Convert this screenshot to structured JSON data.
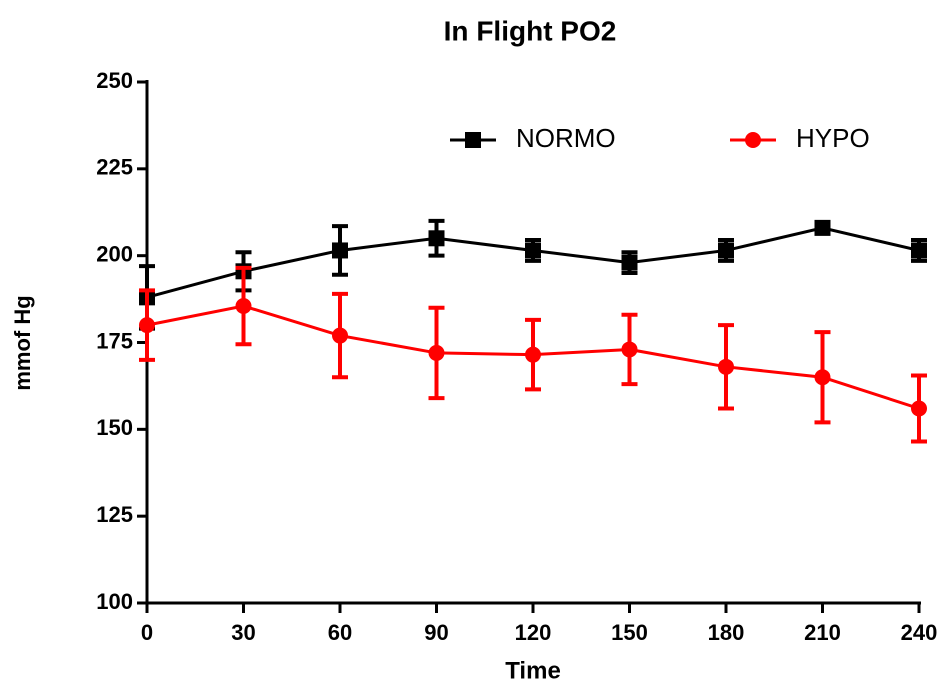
{
  "chart_data": {
    "type": "line",
    "title": "In Flight PO2",
    "xlabel": "Time",
    "ylabel": "mmof Hg",
    "x": [
      0,
      30,
      60,
      90,
      120,
      150,
      180,
      210,
      240
    ],
    "xlim": [
      0,
      240
    ],
    "xticks": [
      0,
      30,
      60,
      90,
      120,
      150,
      180,
      210,
      240
    ],
    "ylim": [
      100,
      250
    ],
    "yticks": [
      100,
      125,
      150,
      175,
      200,
      225,
      250
    ],
    "legend_position": "top-right",
    "series": [
      {
        "name": "NORMO",
        "color": "#000000",
        "marker": "square",
        "values": [
          188,
          195.5,
          201.5,
          205,
          201.5,
          198,
          201.5,
          208,
          201.5
        ],
        "errors": [
          9,
          5.5,
          7,
          5,
          3,
          3,
          3,
          1,
          3
        ]
      },
      {
        "name": "HYPO",
        "color": "#ff0000",
        "marker": "circle",
        "values": [
          180,
          185.5,
          177,
          172,
          171.5,
          173,
          168,
          165,
          156
        ],
        "errors": [
          10,
          11,
          12,
          13,
          10,
          10,
          12,
          13,
          9.5
        ]
      }
    ]
  }
}
